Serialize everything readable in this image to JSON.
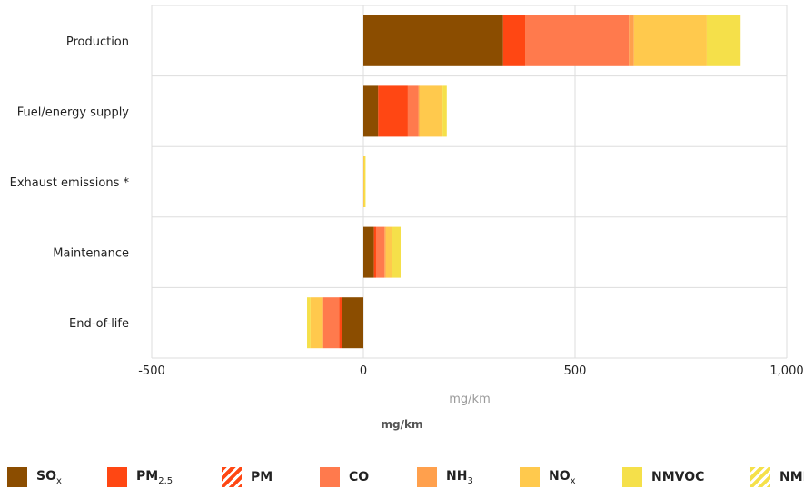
{
  "chart_data": {
    "type": "bar",
    "orientation": "horizontal",
    "stacked": true,
    "categories": [
      "Production",
      "Fuel/energy supply",
      "Exhaust emissions *",
      "Maintenance",
      "End-of-life"
    ],
    "xlabel": "mg/km",
    "xlim": [
      -500,
      1000
    ],
    "xticks": [
      -500,
      0,
      500,
      1000
    ],
    "xtick_labels": [
      "-500",
      "0",
      "500",
      "1,000"
    ],
    "grid": true,
    "legend_title": "mg/km",
    "legend_position": "bottom",
    "series": [
      {
        "name": "SOx",
        "label": "SO",
        "sub": "x",
        "color": "#8B4D00",
        "values": [
          330,
          35,
          0,
          25,
          -50
        ]
      },
      {
        "name": "PM2.5",
        "label": "PM",
        "sub": "2.5",
        "color": "#FF4713",
        "values": [
          52,
          70,
          0,
          5,
          -7
        ]
      },
      {
        "name": "PM",
        "label": "PM",
        "sub": "",
        "color": "#FF4713",
        "pattern": "striped",
        "values": [
          0,
          0,
          0,
          0,
          0
        ]
      },
      {
        "name": "CO",
        "label": "CO",
        "sub": "",
        "color": "#FF7A4D",
        "values": [
          245,
          25,
          0,
          20,
          -38
        ]
      },
      {
        "name": "NH3",
        "label": "NH",
        "sub": "3",
        "color": "#FFA04D",
        "values": [
          12,
          2,
          0,
          3,
          -3
        ]
      },
      {
        "name": "NOx",
        "label": "NO",
        "sub": "x",
        "color": "#FFC94D",
        "values": [
          172,
          55,
          2,
          15,
          -27
        ]
      },
      {
        "name": "NMVOC",
        "label": "NMVOC",
        "sub": "",
        "color": "#F5E04A",
        "values": [
          80,
          10,
          1,
          20,
          -8
        ]
      },
      {
        "name": "NMH",
        "label": "NMH",
        "sub": "",
        "color": "#F5E04A",
        "pattern": "striped",
        "values": [
          0,
          0,
          0,
          0,
          0
        ]
      }
    ]
  }
}
